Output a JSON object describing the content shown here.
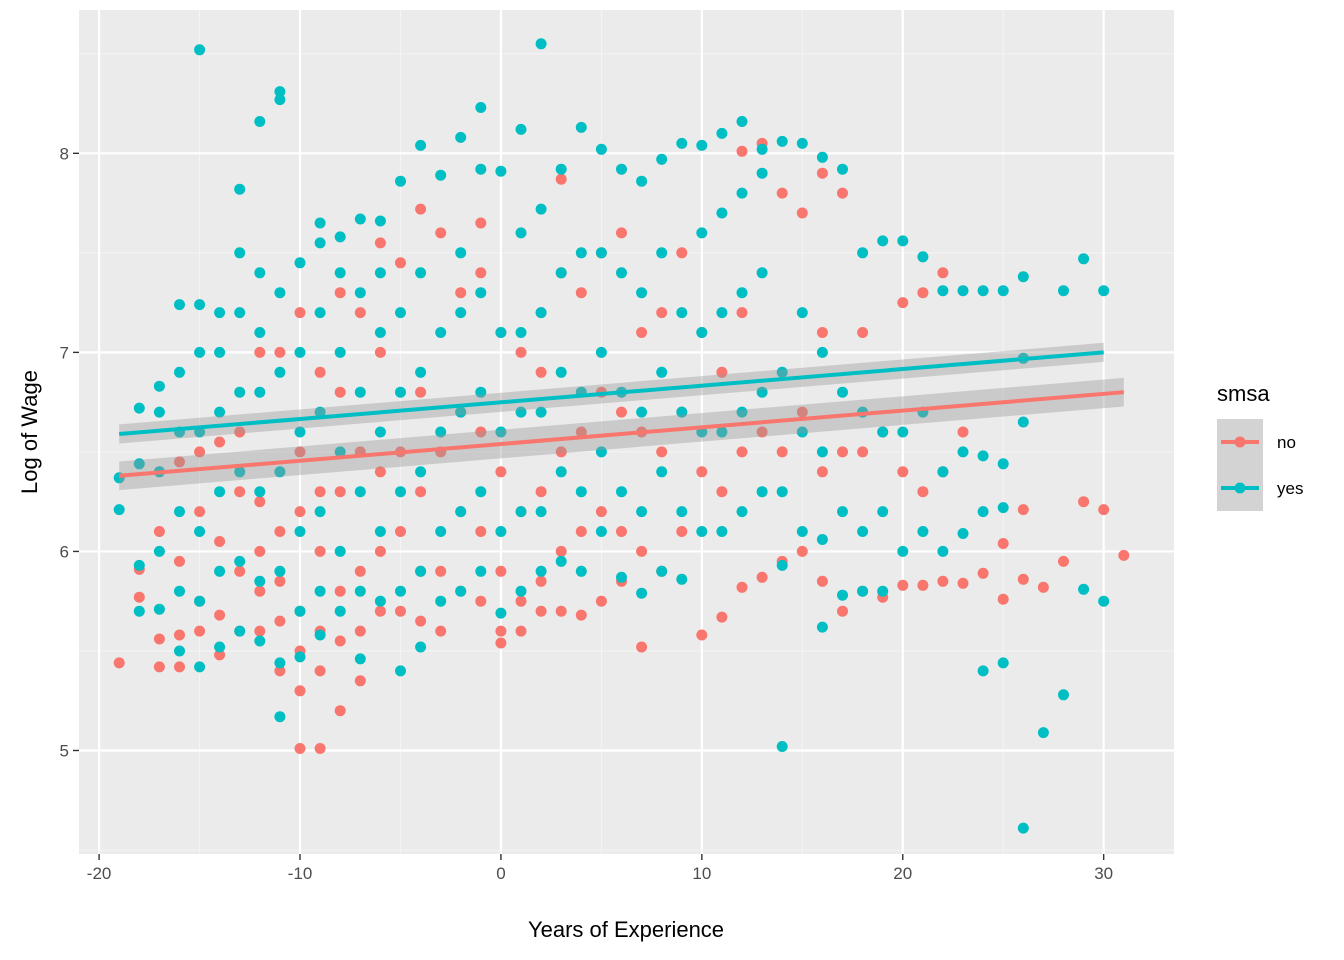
{
  "chart_data": {
    "type": "scatter",
    "xlabel": "Years of Experience",
    "ylabel": "Log of Wage",
    "xlim": [
      -21,
      33.5
    ],
    "ylim": [
      4.48,
      8.72
    ],
    "x_ticks": [
      -20,
      -10,
      0,
      10,
      20,
      30
    ],
    "x_tick_labels": [
      "-20",
      "-10",
      "0",
      "10",
      "20",
      "30"
    ],
    "y_ticks": [
      5,
      6,
      7,
      8
    ],
    "y_tick_labels": [
      "5",
      "6",
      "7",
      "8"
    ],
    "grid": true,
    "legend": {
      "title": "smsa",
      "placement": "right",
      "entries": [
        "no",
        "yes"
      ]
    },
    "series": [
      {
        "name": "no",
        "color": "#F8766D",
        "trend": {
          "x": [
            -19,
            31
          ],
          "y": [
            6.38,
            6.8
          ],
          "ci_halfwidth": 0.045
        },
        "points": {
          "x": [
            -19,
            -18,
            -18,
            -17,
            -17,
            -17,
            -17,
            -16,
            -16,
            -16,
            -16,
            -15,
            -15,
            -15,
            -15,
            -14,
            -14,
            -14,
            -14,
            -13,
            -13,
            -13,
            -13,
            -12,
            -12,
            -12,
            -12,
            -12,
            -11,
            -11,
            -11,
            -11,
            -11,
            -10,
            -10,
            -10,
            -10,
            -10,
            -10,
            -10,
            -9,
            -9,
            -9,
            -9,
            -9,
            -9,
            -8,
            -8,
            -8,
            -8,
            -8,
            -8,
            -7,
            -7,
            -7,
            -7,
            -7,
            -6,
            -6,
            -6,
            -6,
            -6,
            -5,
            -5,
            -5,
            -5,
            -4,
            -4,
            -4,
            -4,
            -4,
            -3,
            -3,
            -3,
            -3,
            -2,
            -2,
            -2,
            -2,
            -1,
            -1,
            -1,
            -1,
            -1,
            0,
            0,
            0,
            0,
            0,
            1,
            1,
            1,
            1,
            2,
            2,
            2,
            2,
            2,
            3,
            3,
            3,
            3,
            3,
            4,
            4,
            4,
            4,
            5,
            5,
            5,
            5,
            6,
            6,
            6,
            6,
            7,
            7,
            7,
            7,
            8,
            8,
            8,
            9,
            9,
            9,
            10,
            10,
            10,
            11,
            11,
            11,
            12,
            12,
            12,
            12,
            13,
            13,
            13,
            14,
            14,
            14,
            15,
            15,
            15,
            16,
            16,
            16,
            16,
            17,
            17,
            17,
            18,
            18,
            18,
            19,
            19,
            20,
            20,
            20,
            21,
            21,
            21,
            22,
            22,
            22,
            23,
            23,
            24,
            25,
            25,
            26,
            26,
            27,
            28,
            29,
            30,
            31
          ],
          "y": [
            5.44,
            5.77,
            5.91,
            5.42,
            5.56,
            6.1,
            6.4,
            5.42,
            5.58,
            5.95,
            6.45,
            5.6,
            5.75,
            6.2,
            6.5,
            5.48,
            5.68,
            6.05,
            6.55,
            5.6,
            5.9,
            6.3,
            6.6,
            5.6,
            5.8,
            6.0,
            6.25,
            7.0,
            5.4,
            5.65,
            5.85,
            6.1,
            7.0,
            5.01,
            5.3,
            5.5,
            5.7,
            6.2,
            6.5,
            7.2,
            5.01,
            5.4,
            5.6,
            6.0,
            6.3,
            6.9,
            5.2,
            5.55,
            5.8,
            6.3,
            6.8,
            7.3,
            5.35,
            5.6,
            5.9,
            6.5,
            7.2,
            5.7,
            6.0,
            6.4,
            7.0,
            7.55,
            5.7,
            6.1,
            6.5,
            7.45,
            5.65,
            5.9,
            6.3,
            6.8,
            7.72,
            5.6,
            5.9,
            6.5,
            7.6,
            5.8,
            6.2,
            6.7,
            7.3,
            5.75,
            6.1,
            6.6,
            7.4,
            7.65,
            5.54,
            5.6,
            5.9,
            6.4,
            7.1,
            5.6,
            5.75,
            6.2,
            7.0,
            5.7,
            5.85,
            6.3,
            6.9,
            7.2,
            5.7,
            6.0,
            6.5,
            7.4,
            7.87,
            5.68,
            6.1,
            6.6,
            7.3,
            5.75,
            6.2,
            6.8,
            7.5,
            5.85,
            6.1,
            6.7,
            7.6,
            5.52,
            6.0,
            6.6,
            7.1,
            5.9,
            6.5,
            7.2,
            6.1,
            6.7,
            7.5,
            5.58,
            6.4,
            7.1,
            5.67,
            6.3,
            6.9,
            5.82,
            6.5,
            7.2,
            8.01,
            5.87,
            6.6,
            8.05,
            5.95,
            6.5,
            7.8,
            6.0,
            6.7,
            7.7,
            5.85,
            6.4,
            7.1,
            7.9,
            5.7,
            6.5,
            7.8,
            5.8,
            6.5,
            7.1,
            5.77,
            6.6,
            5.83,
            6.4,
            7.25,
            5.83,
            6.3,
            7.3,
            5.85,
            6.4,
            7.4,
            5.84,
            6.6,
            5.89,
            5.76,
            6.04,
            5.86,
            6.21,
            5.82,
            5.95,
            6.25,
            6.21,
            5.98
          ]
        }
      },
      {
        "name": "yes",
        "color": "#00BFC4",
        "trend": {
          "x": [
            -19,
            30
          ],
          "y": [
            6.59,
            7.0
          ],
          "ci_halfwidth": 0.03
        },
        "points": {
          "x": [
            -19,
            -19,
            -18,
            -18,
            -18,
            -18,
            -17,
            -17,
            -17,
            -17,
            -17,
            -16,
            -16,
            -16,
            -16,
            -16,
            -16,
            -15,
            -15,
            -15,
            -15,
            -15,
            -15,
            -15,
            -14,
            -14,
            -14,
            -14,
            -14,
            -14,
            -13,
            -13,
            -13,
            -13,
            -13,
            -13,
            -13,
            -12,
            -12,
            -12,
            -12,
            -12,
            -12,
            -12,
            -11,
            -11,
            -11,
            -11,
            -11,
            -11,
            -11,
            -11,
            -10,
            -10,
            -10,
            -10,
            -10,
            -10,
            -9,
            -9,
            -9,
            -9,
            -9,
            -9,
            -9,
            -8,
            -8,
            -8,
            -8,
            -8,
            -8,
            -7,
            -7,
            -7,
            -7,
            -7,
            -7,
            -6,
            -6,
            -6,
            -6,
            -6,
            -6,
            -5,
            -5,
            -5,
            -5,
            -5,
            -5,
            -4,
            -4,
            -4,
            -4,
            -4,
            -4,
            -3,
            -3,
            -3,
            -3,
            -3,
            -2,
            -2,
            -2,
            -2,
            -2,
            -2,
            -1,
            -1,
            -1,
            -1,
            -1,
            -1,
            0,
            0,
            0,
            0,
            0,
            1,
            1,
            1,
            1,
            1,
            1,
            2,
            2,
            2,
            2,
            2,
            2,
            3,
            3,
            3,
            3,
            3,
            4,
            4,
            4,
            4,
            4,
            5,
            5,
            5,
            5,
            5,
            6,
            6,
            6,
            6,
            6,
            7,
            7,
            7,
            7,
            7,
            8,
            8,
            8,
            8,
            8,
            9,
            9,
            9,
            9,
            9,
            10,
            10,
            10,
            10,
            10,
            11,
            11,
            11,
            11,
            11,
            12,
            12,
            12,
            12,
            12,
            13,
            13,
            13,
            13,
            13,
            14,
            14,
            14,
            14,
            14,
            15,
            15,
            15,
            15,
            16,
            16,
            16,
            16,
            16,
            17,
            17,
            17,
            17,
            18,
            18,
            18,
            18,
            19,
            19,
            19,
            19,
            20,
            20,
            20,
            21,
            21,
            21,
            22,
            22,
            22,
            23,
            23,
            23,
            24,
            24,
            24,
            24,
            25,
            25,
            25,
            25,
            26,
            26,
            26,
            26,
            27,
            28,
            28,
            29,
            29,
            30,
            30
          ],
          "y": [
            6.21,
            6.37,
            5.7,
            5.93,
            6.44,
            6.72,
            5.71,
            6.0,
            6.4,
            6.7,
            6.83,
            5.5,
            5.8,
            6.2,
            6.6,
            6.9,
            7.24,
            5.42,
            5.75,
            6.1,
            6.6,
            7.0,
            7.24,
            8.52,
            5.52,
            5.9,
            6.3,
            6.7,
            7.0,
            7.2,
            5.6,
            5.95,
            6.4,
            6.8,
            7.2,
            7.5,
            7.82,
            5.55,
            5.85,
            6.3,
            6.8,
            7.1,
            7.4,
            8.16,
            5.17,
            5.44,
            5.9,
            6.4,
            6.9,
            7.3,
            8.27,
            8.31,
            5.47,
            5.7,
            6.1,
            6.6,
            7.0,
            7.45,
            5.58,
            5.8,
            6.2,
            6.7,
            7.2,
            7.55,
            7.65,
            5.7,
            6.0,
            6.5,
            7.0,
            7.4,
            7.58,
            5.46,
            5.8,
            6.3,
            6.8,
            7.3,
            7.67,
            5.75,
            6.1,
            6.6,
            7.1,
            7.4,
            7.66,
            5.4,
            5.8,
            6.3,
            6.8,
            7.2,
            7.86,
            5.52,
            5.9,
            6.4,
            6.9,
            7.4,
            8.04,
            5.75,
            6.1,
            6.6,
            7.1,
            7.89,
            5.8,
            6.2,
            6.7,
            7.2,
            7.5,
            8.08,
            5.9,
            6.3,
            6.8,
            7.3,
            7.92,
            8.23,
            5.69,
            6.1,
            6.6,
            7.1,
            7.91,
            5.8,
            6.2,
            6.7,
            7.1,
            7.6,
            8.12,
            5.9,
            6.2,
            6.7,
            7.2,
            7.72,
            8.55,
            5.95,
            6.4,
            6.9,
            7.4,
            7.92,
            5.9,
            6.3,
            6.8,
            7.5,
            8.13,
            6.1,
            6.5,
            7.0,
            7.5,
            8.02,
            5.87,
            6.3,
            6.8,
            7.4,
            7.92,
            5.79,
            6.2,
            6.7,
            7.3,
            7.86,
            5.9,
            6.4,
            6.9,
            7.5,
            7.97,
            5.86,
            6.2,
            6.7,
            7.2,
            8.05,
            6.1,
            6.6,
            7.1,
            7.6,
            8.04,
            6.1,
            6.6,
            7.2,
            7.7,
            8.1,
            6.2,
            6.7,
            7.3,
            7.8,
            8.16,
            6.3,
            6.8,
            7.4,
            7.9,
            8.02,
            5.02,
            5.93,
            6.3,
            6.9,
            8.06,
            6.1,
            6.6,
            7.2,
            8.05,
            5.62,
            6.06,
            6.5,
            7.0,
            7.98,
            5.78,
            6.2,
            6.8,
            7.92,
            5.8,
            6.1,
            6.7,
            7.5,
            5.8,
            6.2,
            6.6,
            7.56,
            6.0,
            6.6,
            7.56,
            6.1,
            6.7,
            7.48,
            6.0,
            6.4,
            7.31,
            6.09,
            6.5,
            7.31,
            5.4,
            6.2,
            6.48,
            7.31,
            5.44,
            6.22,
            6.44,
            7.31,
            4.61,
            6.65,
            6.97,
            7.38,
            5.09,
            5.28,
            7.31,
            5.81,
            7.47,
            5.75,
            7.31
          ]
        }
      }
    ]
  }
}
